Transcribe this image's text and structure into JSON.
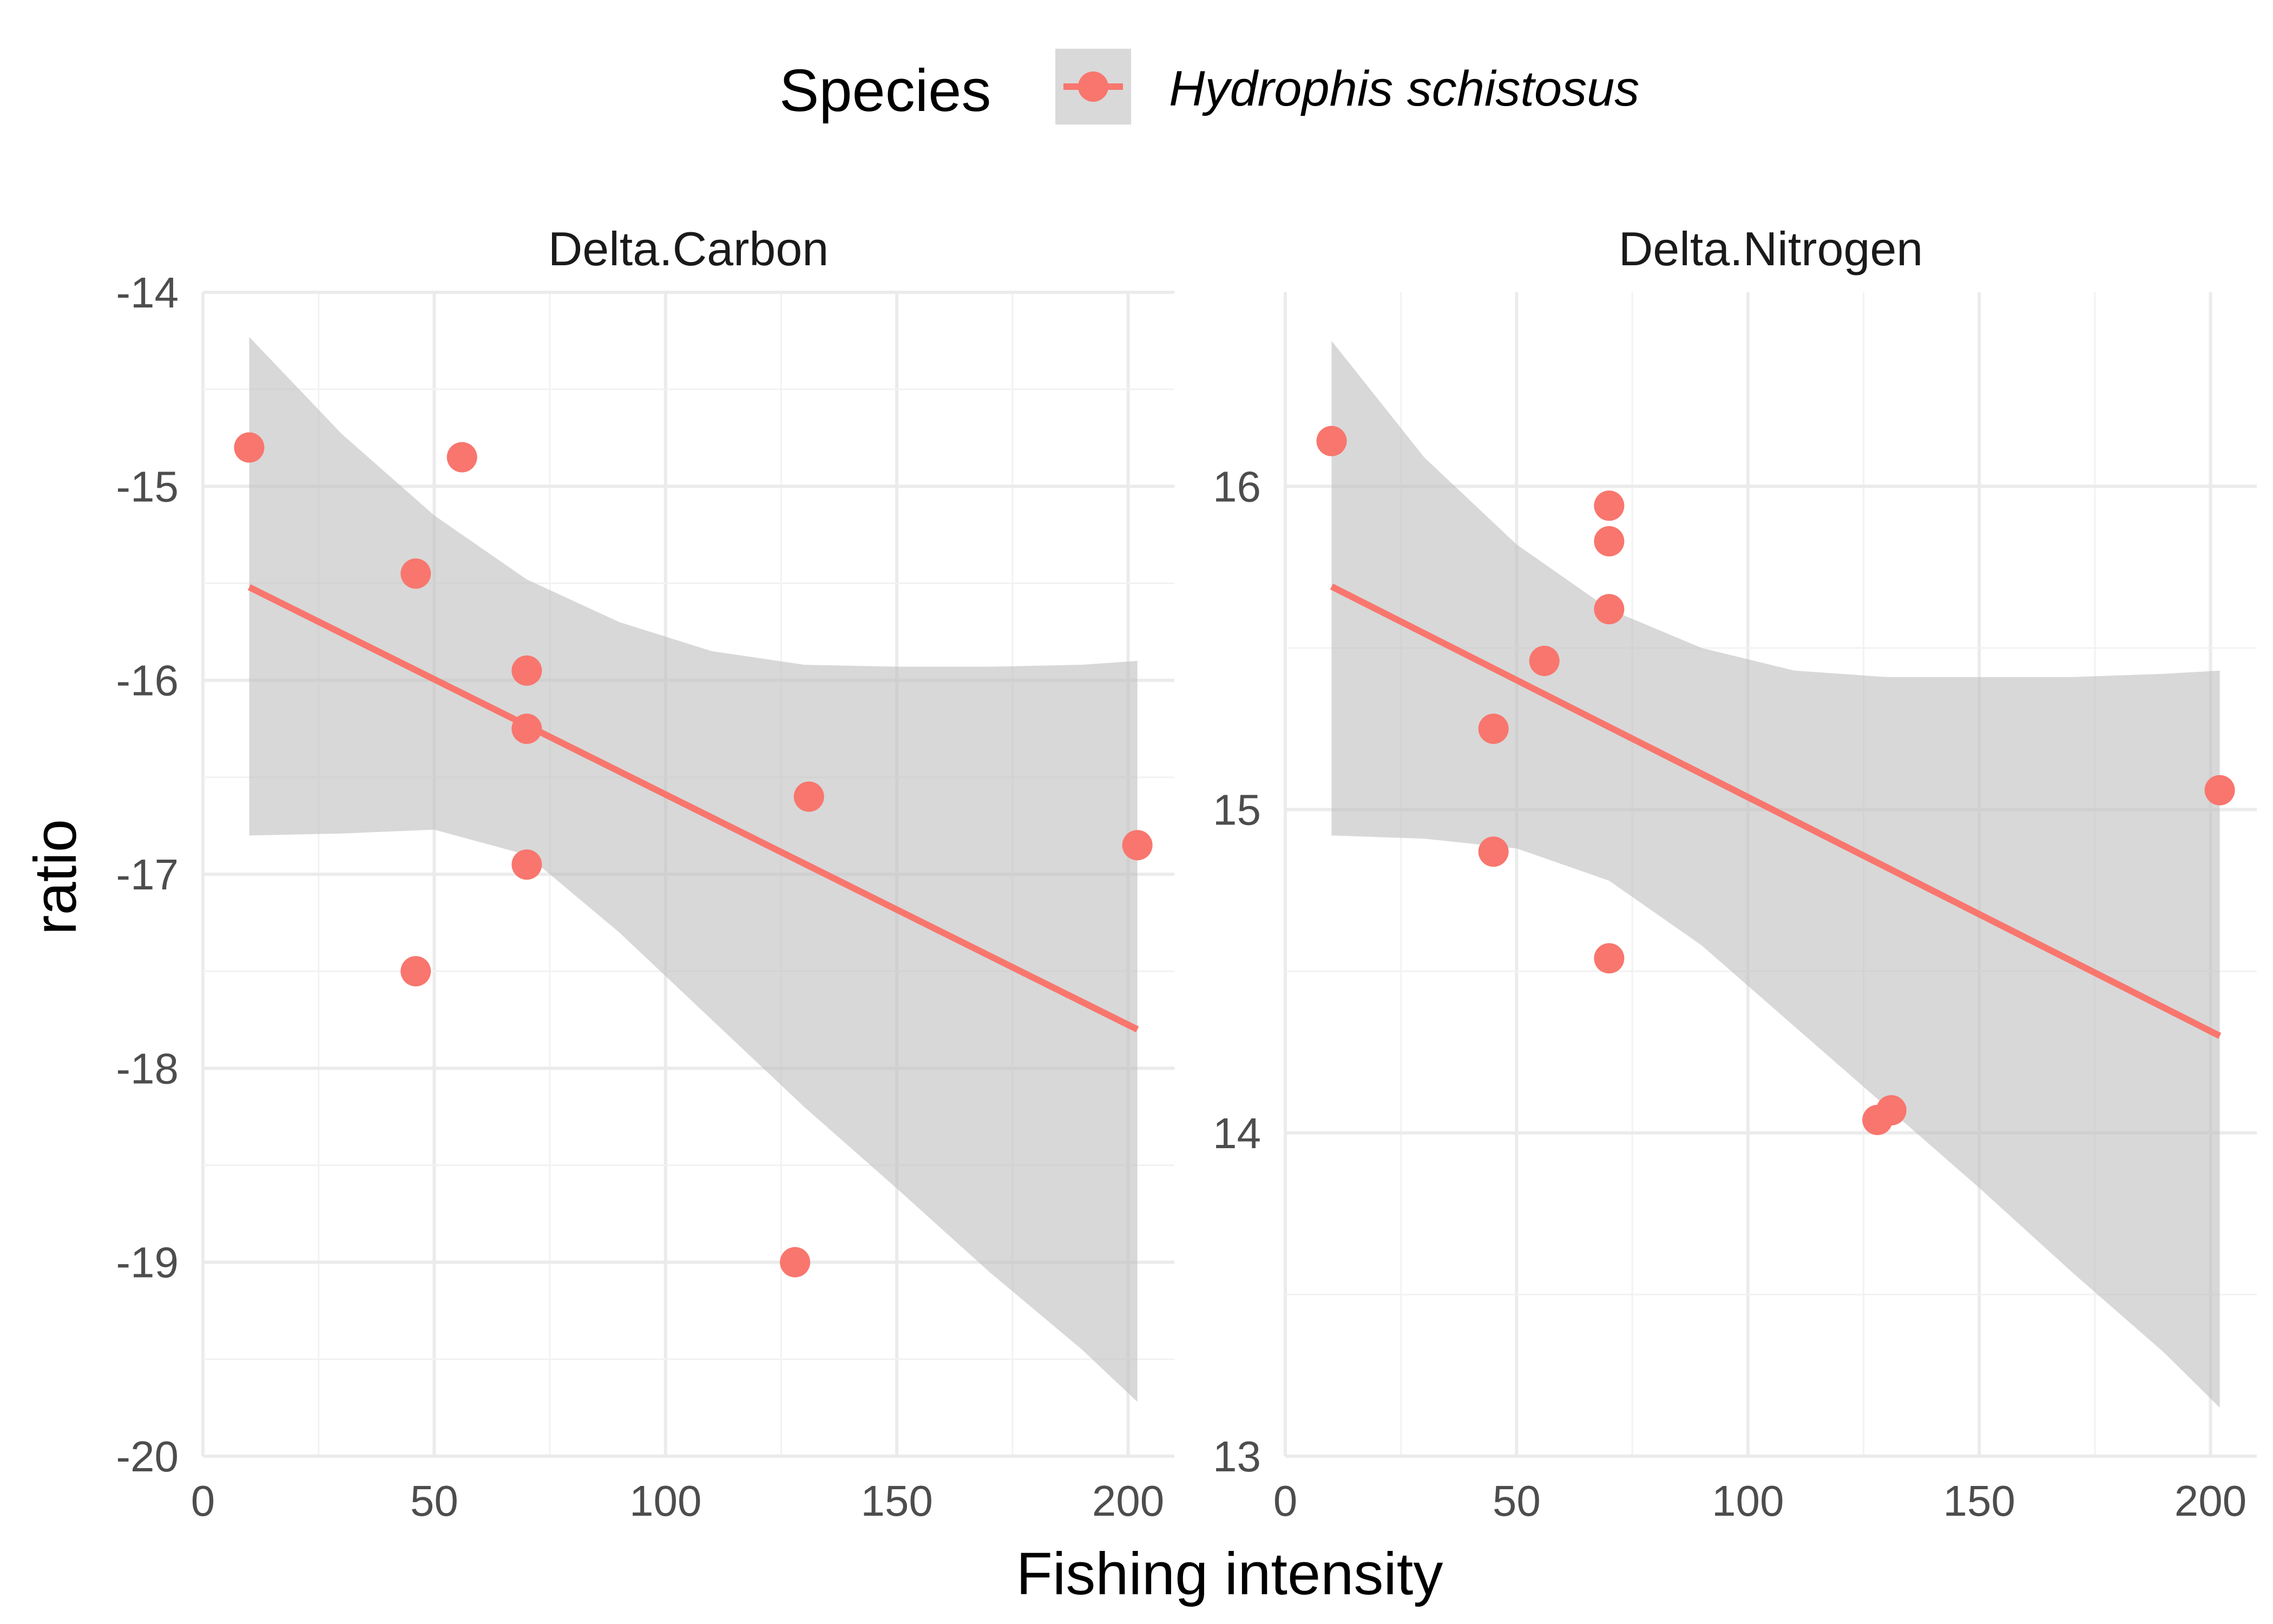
{
  "chart_data": {
    "type": "scatter",
    "xlabel": "Fishing intensity",
    "ylabel": "ratio",
    "legend": {
      "title": "Species",
      "position": "top",
      "entries": [
        {
          "label": "Hydrophis schistosus",
          "color": "#F8766D",
          "band_color": "#BEBEBE"
        }
      ]
    },
    "grid": true,
    "theme": "minimal",
    "panels": [
      {
        "title": "Delta.Carbon",
        "xlim": [
          0,
          210
        ],
        "ylim": [
          -20,
          -14
        ],
        "x_ticks": [
          "0",
          "50",
          "100",
          "150",
          "200"
        ],
        "x_tick_values": [
          0,
          50,
          100,
          150,
          200
        ],
        "y_ticks": [
          "-14",
          "-15",
          "-16",
          "-17",
          "-18",
          "-19",
          "-20"
        ],
        "y_tick_values": [
          -14,
          -15,
          -16,
          -17,
          -18,
          -19,
          -20
        ],
        "points": [
          {
            "x": 10,
            "y": -14.8
          },
          {
            "x": 46,
            "y": -15.45
          },
          {
            "x": 46,
            "y": -17.5
          },
          {
            "x": 56,
            "y": -14.85
          },
          {
            "x": 70,
            "y": -15.95
          },
          {
            "x": 70,
            "y": -16.25
          },
          {
            "x": 70,
            "y": -16.95
          },
          {
            "x": 128,
            "y": -19.0
          },
          {
            "x": 131,
            "y": -16.6
          },
          {
            "x": 202,
            "y": -16.85
          }
        ],
        "fit": {
          "x": [
            10,
            202
          ],
          "y": [
            -15.52,
            -17.8
          ]
        },
        "band": {
          "x": [
            10,
            30,
            50,
            70,
            90,
            110,
            130,
            150,
            170,
            190,
            202
          ],
          "lower": [
            -16.8,
            -16.79,
            -16.77,
            -16.9,
            -17.3,
            -17.75,
            -18.2,
            -18.62,
            -19.05,
            -19.45,
            -19.72
          ],
          "upper": [
            -14.23,
            -14.73,
            -15.15,
            -15.48,
            -15.7,
            -15.85,
            -15.92,
            -15.93,
            -15.93,
            -15.92,
            -15.9
          ]
        }
      },
      {
        "title": "Delta.Nitrogen",
        "xlim": [
          0,
          210
        ],
        "ylim": [
          13,
          16.6
        ],
        "x_ticks": [
          "0",
          "50",
          "100",
          "150",
          "200"
        ],
        "x_tick_values": [
          0,
          50,
          100,
          150,
          200
        ],
        "y_ticks": [
          "13",
          "14",
          "15",
          "16"
        ],
        "y_tick_values": [
          13,
          14,
          15,
          16
        ],
        "points": [
          {
            "x": 10,
            "y": 16.14
          },
          {
            "x": 45,
            "y": 15.25
          },
          {
            "x": 45,
            "y": 14.87
          },
          {
            "x": 56,
            "y": 15.46
          },
          {
            "x": 70,
            "y": 15.94
          },
          {
            "x": 70,
            "y": 15.83
          },
          {
            "x": 70,
            "y": 15.62
          },
          {
            "x": 70,
            "y": 14.54
          },
          {
            "x": 128,
            "y": 14.04
          },
          {
            "x": 131,
            "y": 14.07
          },
          {
            "x": 202,
            "y": 15.06
          }
        ],
        "fit": {
          "x": [
            10,
            202
          ],
          "y": [
            15.69,
            14.3
          ]
        },
        "band": {
          "x": [
            10,
            30,
            50,
            70,
            90,
            110,
            130,
            150,
            170,
            190,
            202
          ],
          "lower": [
            14.92,
            14.91,
            14.88,
            14.78,
            14.58,
            14.33,
            14.08,
            13.83,
            13.57,
            13.32,
            13.15
          ],
          "upper": [
            16.45,
            16.09,
            15.82,
            15.62,
            15.5,
            15.43,
            15.41,
            15.41,
            15.41,
            15.42,
            15.43
          ]
        }
      }
    ]
  }
}
